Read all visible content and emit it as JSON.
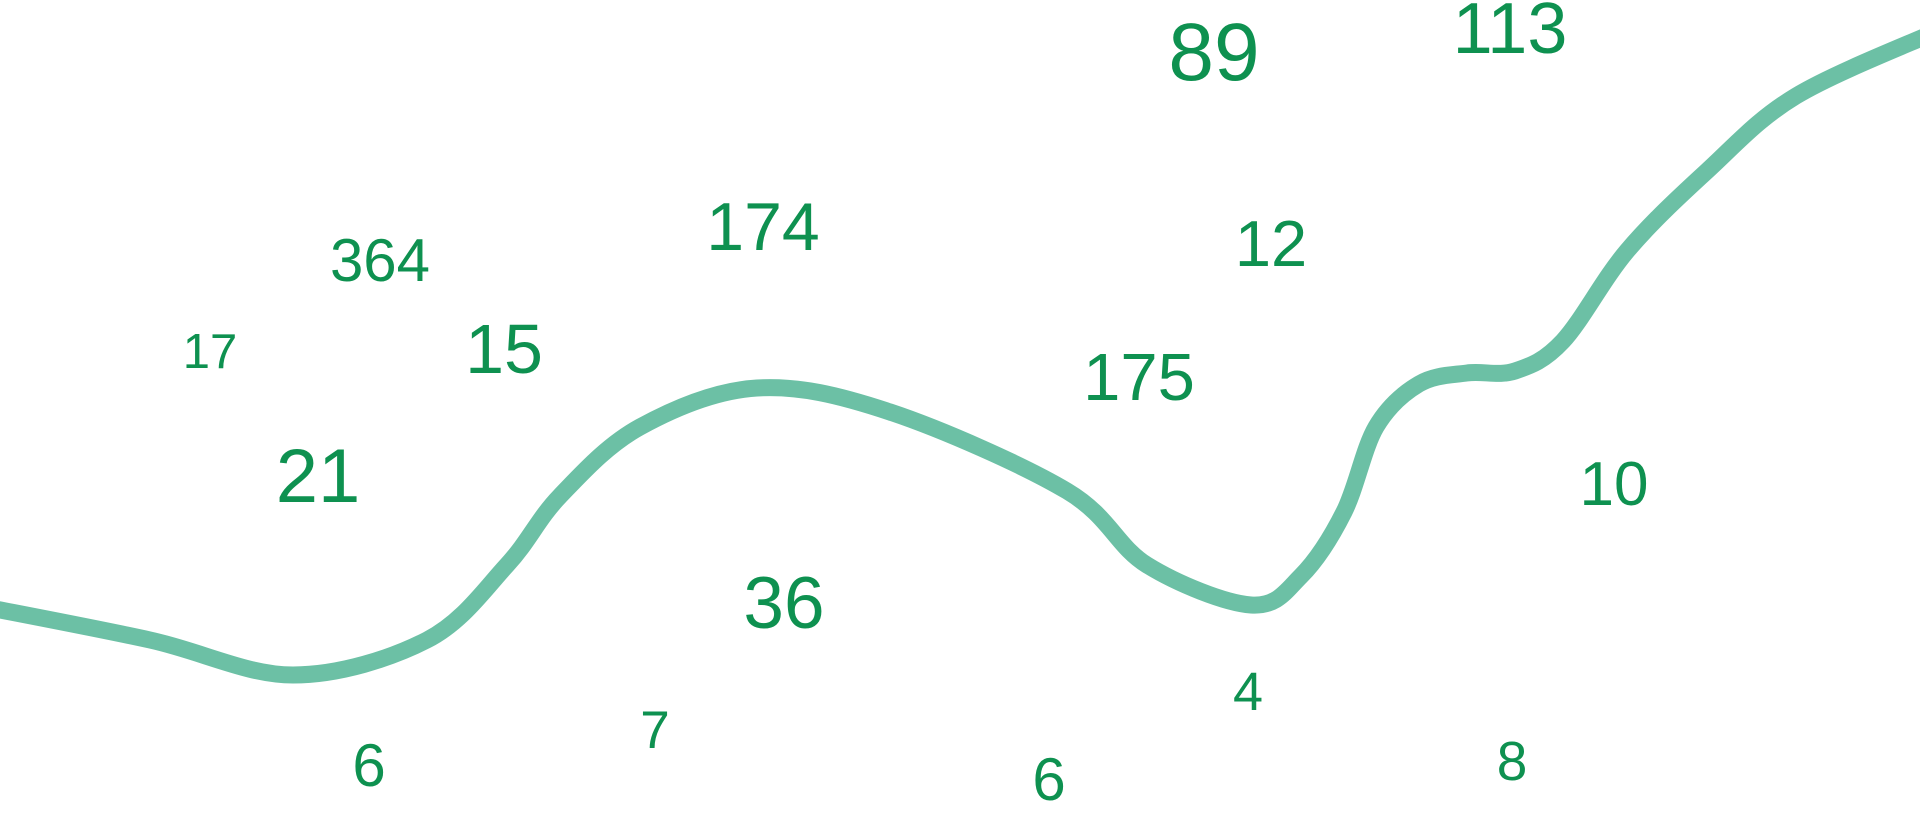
{
  "colors": {
    "number_text": "#0e9150",
    "curve": "#6cc0a5",
    "background": "#ffffff"
  },
  "numbers": [
    "364",
    "174",
    "17",
    "15",
    "21",
    "36",
    "7",
    "6",
    "89",
    "113",
    "12",
    "175",
    "10",
    "4",
    "6",
    "8"
  ]
}
